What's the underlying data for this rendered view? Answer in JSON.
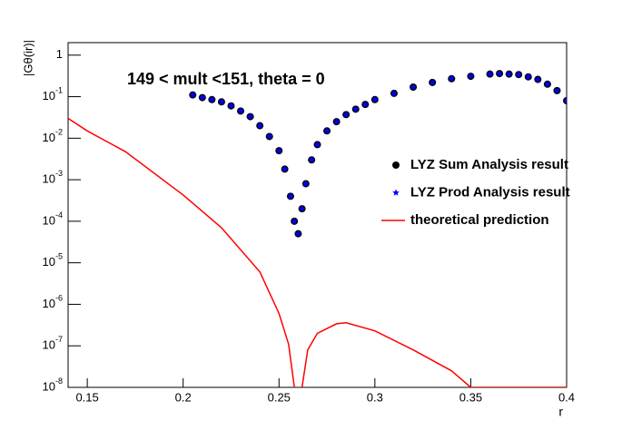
{
  "chart_data": {
    "type": "scatter",
    "annotation": "149 < mult <151, theta = 0",
    "x_label": "r",
    "y_label": "|Gθ(ir)|",
    "log_y": true,
    "xlim": [
      0.14,
      0.4
    ],
    "xticks": [
      0.15,
      0.2,
      0.25,
      0.3,
      0.35,
      0.4
    ],
    "ylim": [
      1e-08,
      2
    ],
    "yticks": [
      {
        "value": 1e-08,
        "label": "10-8"
      },
      {
        "value": 1e-07,
        "label": "10-7"
      },
      {
        "value": 1e-06,
        "label": "10-6"
      },
      {
        "value": 1e-05,
        "label": "10-5"
      },
      {
        "value": 0.0001,
        "label": "10-4"
      },
      {
        "value": 0.001,
        "label": "10-3"
      },
      {
        "value": 0.01,
        "label": "10-2"
      },
      {
        "value": 0.1,
        "label": "10-1"
      },
      1
    ],
    "x": [
      0.205,
      0.21,
      0.215,
      0.22,
      0.225,
      0.23,
      0.235,
      0.24,
      0.245,
      0.25,
      0.253,
      0.256,
      0.258,
      0.26,
      0.262,
      0.264,
      0.267,
      0.27,
      0.275,
      0.28,
      0.285,
      0.29,
      0.295,
      0.3,
      0.31,
      0.32,
      0.33,
      0.34,
      0.35,
      0.36,
      0.365,
      0.37,
      0.375,
      0.38,
      0.385,
      0.39,
      0.395,
      0.4
    ],
    "series": [
      {
        "name": "LYZ Sum Analysis result",
        "color": "#000000",
        "marker": "circle",
        "values": [
          0.11,
          0.095,
          0.085,
          0.075,
          0.06,
          0.045,
          0.033,
          0.02,
          0.011,
          0.005,
          0.0018,
          0.0004,
          0.0001,
          5e-05,
          0.0002,
          0.0008,
          0.003,
          0.007,
          0.015,
          0.025,
          0.037,
          0.05,
          0.065,
          0.085,
          0.12,
          0.17,
          0.22,
          0.27,
          0.31,
          0.35,
          0.36,
          0.35,
          0.34,
          0.3,
          0.26,
          0.2,
          0.14,
          0.08
        ]
      },
      {
        "name": "LYZ Prod Analysis result",
        "color": "#0000ff",
        "marker": "star",
        "values": [
          0.11,
          0.095,
          0.085,
          0.075,
          0.06,
          0.045,
          0.033,
          0.02,
          0.011,
          0.005,
          0.0018,
          0.0004,
          0.0001,
          5e-05,
          0.0002,
          0.0008,
          0.003,
          0.007,
          0.015,
          0.025,
          0.037,
          0.05,
          0.065,
          0.085,
          0.12,
          0.17,
          0.22,
          0.27,
          0.31,
          0.35,
          0.36,
          0.35,
          0.34,
          0.3,
          0.26,
          0.2,
          0.14,
          0.08
        ]
      },
      {
        "name": "theoretical prediction",
        "color": "#ff0000",
        "marker": "line",
        "x": [
          0.14,
          0.15,
          0.17,
          0.2,
          0.22,
          0.24,
          0.25,
          0.255,
          0.258,
          0.259,
          0.261,
          0.262,
          0.265,
          0.27,
          0.28,
          0.285,
          0.3,
          0.32,
          0.34,
          0.35,
          0.4
        ],
        "values": [
          0.03,
          0.015,
          0.0047,
          0.00043,
          7e-05,
          6e-06,
          6e-07,
          1.1e-07,
          1e-08,
          5e-09,
          5e-09,
          1e-08,
          8e-08,
          2e-07,
          3.4e-07,
          3.6e-07,
          2.3e-07,
          8e-08,
          2.5e-08,
          1e-08,
          1e-08
        ]
      }
    ]
  }
}
